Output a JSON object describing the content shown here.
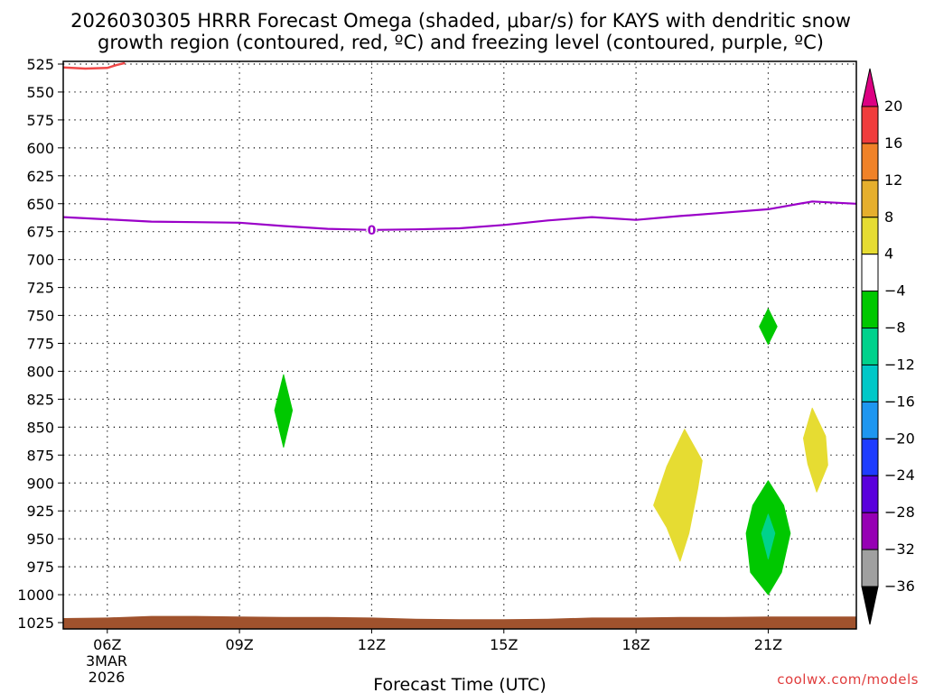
{
  "chart_data": {
    "type": "time-height cross-section (contour)",
    "title_line1": "2026030305 HRRR Forecast Omega (shaded, μbar/s) for KAYS with dendritic snow",
    "title_line2": "growth region (contoured, red, ºC) and freezing level (contoured, purple, ºC)",
    "xlabel": "Forecast Time (UTC)",
    "x_hours": [
      6,
      9,
      12,
      15,
      18,
      21
    ],
    "x_tick_labels": [
      "06Z",
      "09Z",
      "12Z",
      "15Z",
      "18Z",
      "21Z"
    ],
    "x_sub_label": [
      "3MAR",
      "2026"
    ],
    "xlim": [
      5,
      23
    ],
    "y_levels": [
      525,
      550,
      575,
      600,
      625,
      650,
      675,
      700,
      725,
      750,
      775,
      800,
      825,
      850,
      875,
      900,
      925,
      950,
      975,
      1000,
      1025
    ],
    "ylim_hPa": [
      525,
      1025
    ],
    "freezing_level": {
      "label": "0",
      "color": "#9a00c8",
      "points": [
        [
          5,
          662
        ],
        [
          6,
          664
        ],
        [
          7,
          666
        ],
        [
          8,
          666.5
        ],
        [
          9,
          667
        ],
        [
          10,
          670
        ],
        [
          11,
          672.5
        ],
        [
          12,
          673.5
        ],
        [
          13,
          673
        ],
        [
          14,
          672
        ],
        [
          15,
          669
        ],
        [
          16,
          665
        ],
        [
          17,
          662
        ],
        [
          18,
          664.5
        ],
        [
          19,
          661
        ],
        [
          20,
          658
        ],
        [
          21,
          655
        ],
        [
          22,
          648
        ],
        [
          23,
          650
        ]
      ]
    },
    "dgz_contour": {
      "color": "#f04848",
      "points": [
        [
          5,
          528
        ],
        [
          5.5,
          529
        ],
        [
          6,
          528.5
        ],
        [
          6.2,
          526
        ],
        [
          6.4,
          524
        ]
      ]
    },
    "omega_features": [
      {
        "color": "#00c800",
        "range": "-8 to -4",
        "points": [
          [
            10,
            803
          ],
          [
            10.2,
            835
          ],
          [
            10,
            868
          ],
          [
            9.8,
            835
          ]
        ]
      },
      {
        "color": "#00c800",
        "range": "-8 to -4",
        "points": [
          [
            21,
            744
          ],
          [
            21.2,
            760
          ],
          [
            21,
            776
          ],
          [
            20.8,
            760
          ]
        ]
      },
      {
        "color": "#e6dc32",
        "range": "4 to 8",
        "points": [
          [
            19.1,
            852
          ],
          [
            19.5,
            880
          ],
          [
            19.4,
            905
          ],
          [
            19.2,
            945
          ],
          [
            19,
            970
          ],
          [
            18.7,
            940
          ],
          [
            18.4,
            920
          ],
          [
            18.7,
            885
          ]
        ]
      },
      {
        "color": "#e6dc32",
        "range": "4 to 8",
        "points": [
          [
            22,
            833
          ],
          [
            22.3,
            858
          ],
          [
            22.35,
            884
          ],
          [
            22.1,
            908
          ],
          [
            21.9,
            883
          ],
          [
            21.8,
            860
          ]
        ]
      },
      {
        "color": "#00c800",
        "range": "-8 to -4",
        "points": [
          [
            21,
            898
          ],
          [
            21.35,
            920
          ],
          [
            21.5,
            945
          ],
          [
            21.3,
            980
          ],
          [
            21,
            1000
          ],
          [
            20.6,
            980
          ],
          [
            20.5,
            945
          ],
          [
            20.65,
            920
          ]
        ]
      },
      {
        "color": "#00d28c",
        "range": "-12 to -8",
        "points": [
          [
            21,
            928
          ],
          [
            21.15,
            945
          ],
          [
            21,
            968
          ],
          [
            20.85,
            945
          ]
        ]
      }
    ],
    "terrain": {
      "color": "#a0522d",
      "points": [
        [
          5,
          1021
        ],
        [
          6,
          1020.5
        ],
        [
          7,
          1019
        ],
        [
          8,
          1019
        ],
        [
          9,
          1019.5
        ],
        [
          10,
          1020
        ],
        [
          11,
          1020
        ],
        [
          12,
          1020.5
        ],
        [
          13,
          1021.5
        ],
        [
          14,
          1022
        ],
        [
          15,
          1022
        ],
        [
          16,
          1021.5
        ],
        [
          17,
          1020.5
        ],
        [
          18,
          1020.5
        ],
        [
          19,
          1020
        ],
        [
          20,
          1020
        ],
        [
          21,
          1019.5
        ],
        [
          22,
          1019.5
        ],
        [
          23,
          1019.5
        ]
      ]
    },
    "colorbar": {
      "levels": [
        "20",
        "16",
        "12",
        "8",
        "4",
        "−4",
        "−8",
        "−12",
        "−16",
        "−20",
        "−24",
        "−28",
        "−32",
        "−36"
      ],
      "colors": [
        "#f03c3c",
        "#f08228",
        "#e6af2d",
        "#e6dc32",
        "#ffffff",
        "#00c800",
        "#00d28c",
        "#00c8c8",
        "#1e96f0",
        "#1e3cff",
        "#5a00dc",
        "#9600b4",
        "#a0a0a0"
      ],
      "top_arrow_color": "#dc0082",
      "bottom_arrow_color": "#000000"
    },
    "credit": "coolwx.com/models"
  }
}
